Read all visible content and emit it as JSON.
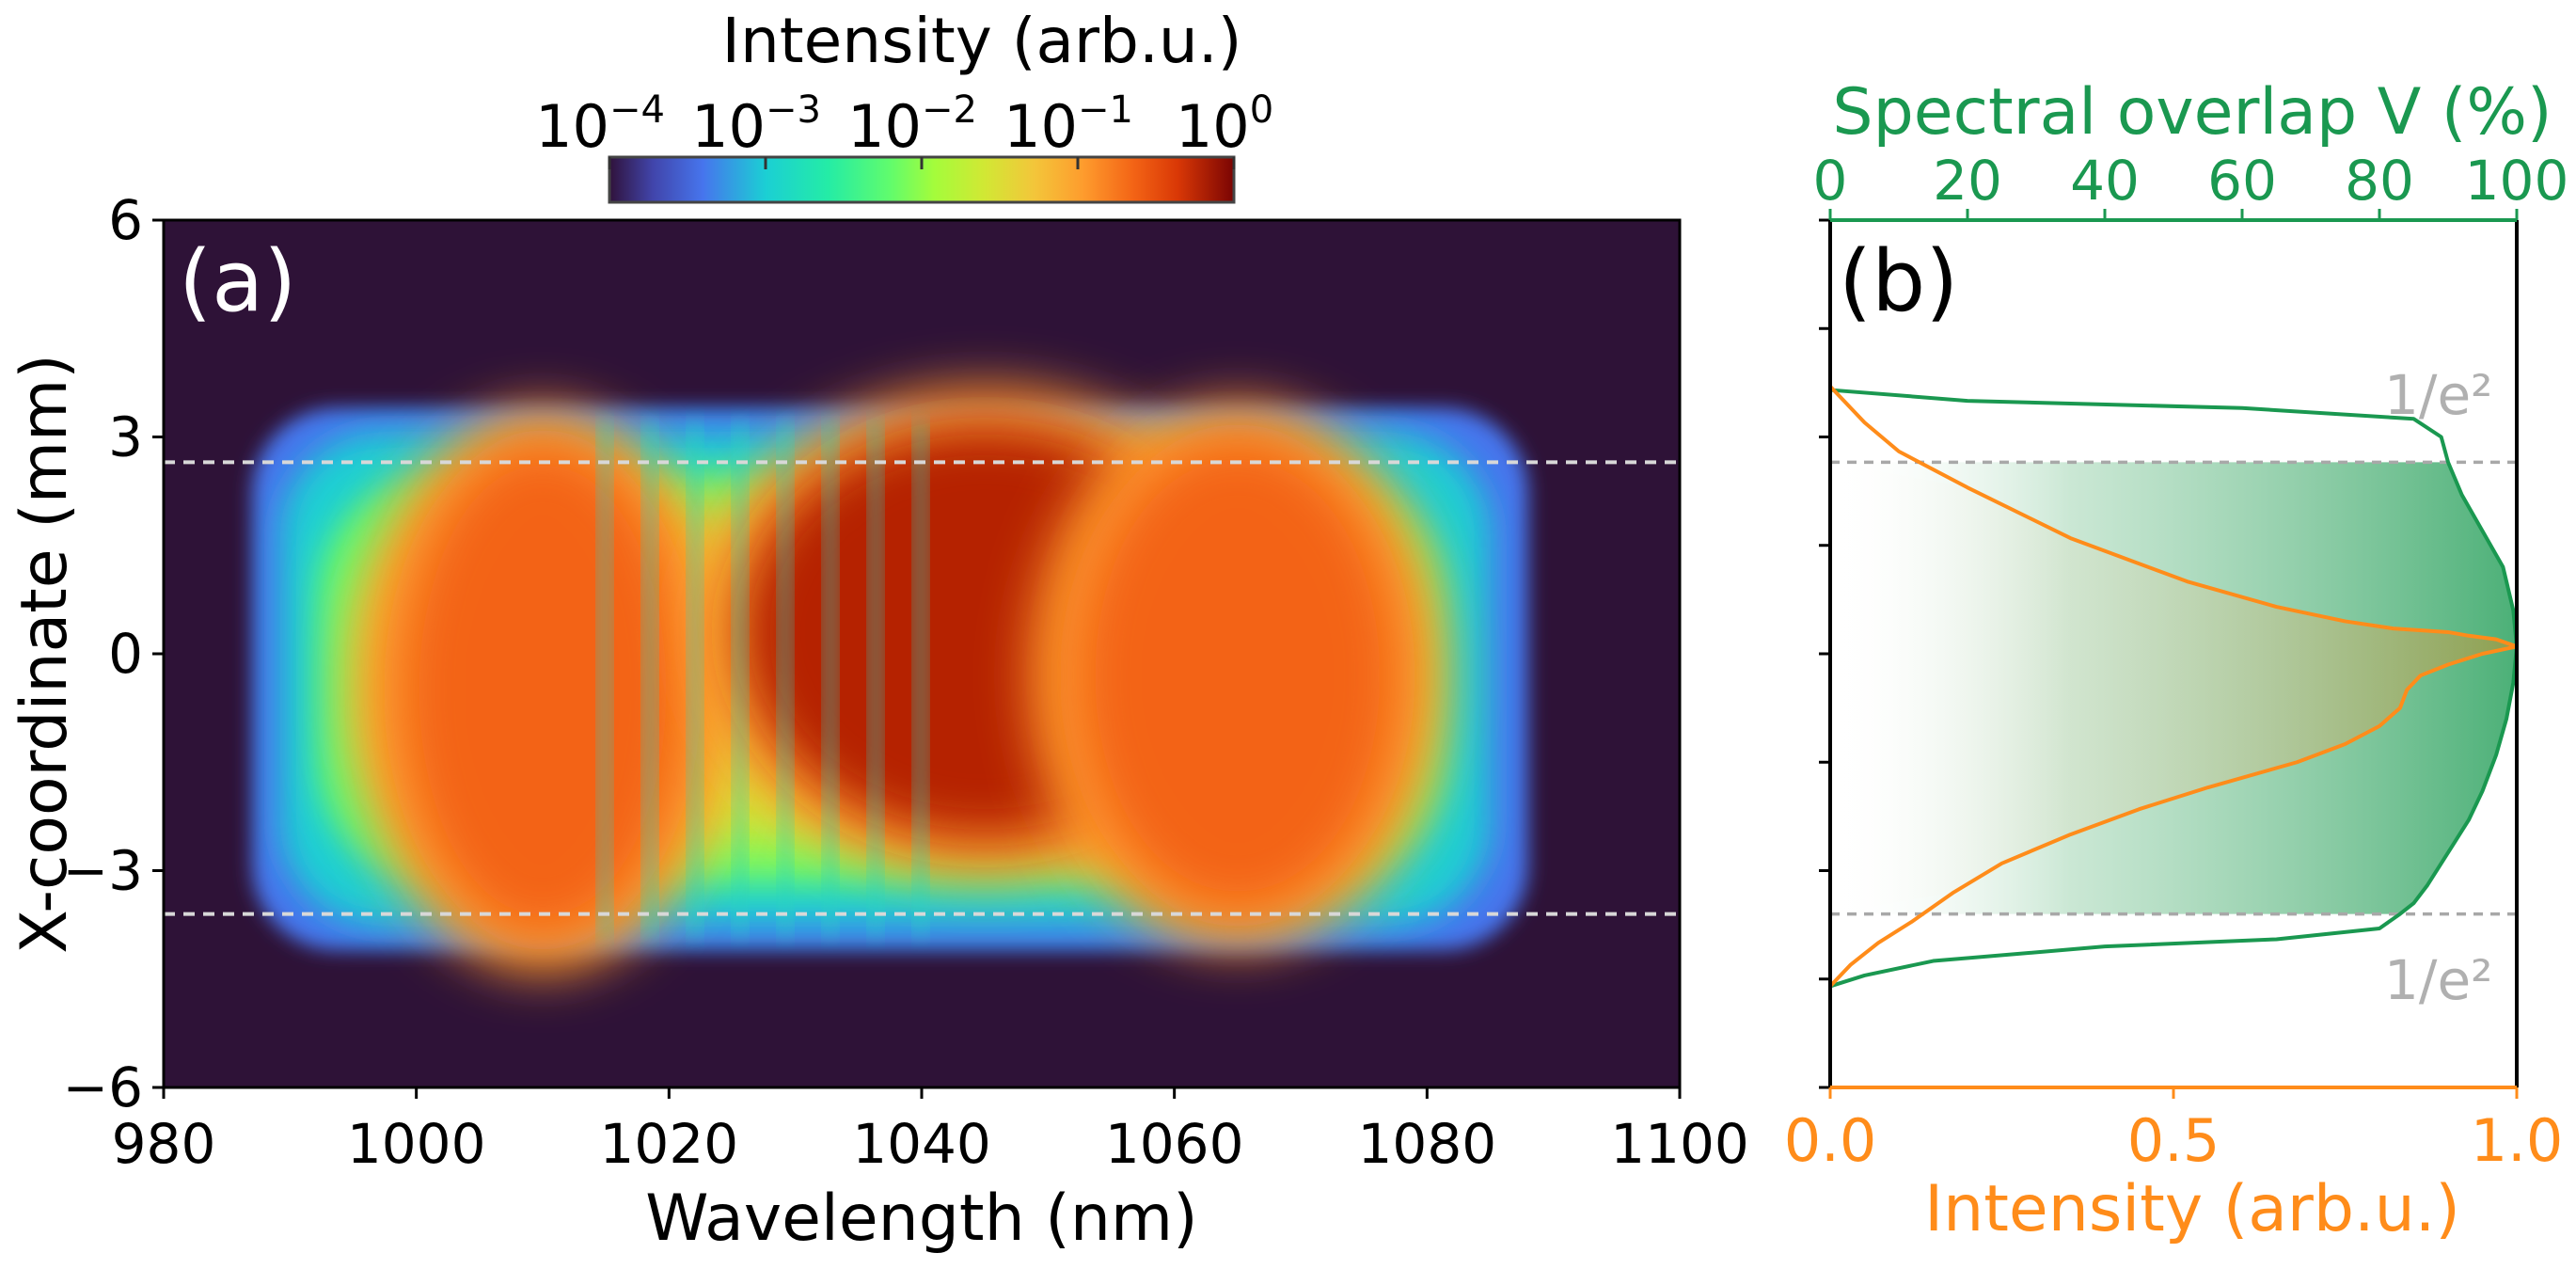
{
  "colors": {
    "background": "#ffffff",
    "map_bg": "#2e1237",
    "axis": "#000000",
    "green": "#1a9850",
    "orange": "#ff8c1a",
    "e2_gray": "#b0b0b0",
    "dash": "#d8d8d8"
  },
  "colorbar": {
    "title": "Intensity (arb.u.)",
    "ticks": [
      {
        "base": "10",
        "exp": "−4"
      },
      {
        "base": "10",
        "exp": "−3"
      },
      {
        "base": "10",
        "exp": "−2"
      },
      {
        "base": "10",
        "exp": "−1"
      },
      {
        "base": "10",
        "exp": "0"
      }
    ]
  },
  "chart_data": [
    {
      "id": "a",
      "type": "heatmap",
      "panel_label": "(a)",
      "title": "",
      "xlabel": "Wavelength (nm)",
      "ylabel": "X-coordinate (mm)",
      "xlim": [
        980,
        1100
      ],
      "ylim": [
        -6,
        6
      ],
      "xticks": [
        980,
        1000,
        1020,
        1040,
        1060,
        1080,
        1100
      ],
      "yticks": [
        -6,
        -3,
        0,
        3,
        6
      ],
      "ytick_labels": [
        "−6",
        "−3",
        "0",
        "3",
        "6"
      ],
      "colorscale": "log10 intensity",
      "clim_log10": [
        -4,
        0
      ],
      "beam_region": {
        "wavelength_nm": [
          987,
          1088
        ],
        "x_mm": [
          -4.1,
          3.4
        ]
      },
      "bright_lobes": [
        {
          "center_nm": 1010,
          "center_mm": -0.5,
          "log10_peak": -0.5
        },
        {
          "center_nm": 1045,
          "center_mm": 0.3,
          "log10_peak": 0
        },
        {
          "center_nm": 1065,
          "center_mm": -0.3,
          "log10_peak": -0.5
        }
      ],
      "fringes_nm": [
        1015,
        1040
      ],
      "dashed_lines_mm": [
        2.65,
        -3.6
      ]
    },
    {
      "id": "b",
      "type": "line",
      "panel_label": "(b)",
      "xlabel_bottom": "Intensity (arb.u.)",
      "xlabel_top": "Spectral overlap V (%)",
      "xlim_bottom": [
        0,
        1
      ],
      "xlim_top": [
        0,
        100
      ],
      "xticks_bottom": [
        "0.0",
        "0.5",
        "1.0"
      ],
      "xticks_top": [
        "0",
        "20",
        "40",
        "60",
        "80",
        "100"
      ],
      "ylim": [
        -6,
        6
      ],
      "annotations": [
        "1/e²",
        "1/e²"
      ],
      "dashed_lines_mm": [
        2.65,
        -3.6
      ],
      "series": [
        {
          "name": "Intensity",
          "axis": "bottom",
          "points": [
            [
              0.0,
              3.7
            ],
            [
              0.05,
              3.2
            ],
            [
              0.1,
              2.8
            ],
            [
              0.2,
              2.3
            ],
            [
              0.35,
              1.6
            ],
            [
              0.52,
              1.0
            ],
            [
              0.65,
              0.65
            ],
            [
              0.75,
              0.45
            ],
            [
              0.82,
              0.35
            ],
            [
              0.9,
              0.3
            ],
            [
              0.93,
              0.25
            ],
            [
              0.97,
              0.2
            ],
            [
              1.0,
              0.1
            ],
            [
              0.95,
              0.0
            ],
            [
              0.9,
              -0.15
            ],
            [
              0.86,
              -0.3
            ],
            [
              0.84,
              -0.5
            ],
            [
              0.83,
              -0.75
            ],
            [
              0.8,
              -1.0
            ],
            [
              0.75,
              -1.25
            ],
            [
              0.68,
              -1.5
            ],
            [
              0.55,
              -1.85
            ],
            [
              0.45,
              -2.15
            ],
            [
              0.35,
              -2.5
            ],
            [
              0.25,
              -2.9
            ],
            [
              0.18,
              -3.3
            ],
            [
              0.12,
              -3.7
            ],
            [
              0.07,
              -4.0
            ],
            [
              0.03,
              -4.3
            ],
            [
              0.0,
              -4.6
            ]
          ]
        },
        {
          "name": "Spectral overlap V",
          "axis": "top",
          "points": [
            [
              0,
              3.65
            ],
            [
              20,
              3.5
            ],
            [
              60,
              3.4
            ],
            [
              85,
              3.25
            ],
            [
              89,
              3.0
            ],
            [
              90,
              2.65
            ],
            [
              92,
              2.2
            ],
            [
              95,
              1.7
            ],
            [
              98,
              1.2
            ],
            [
              99.5,
              0.6
            ],
            [
              100,
              0.1
            ],
            [
              99.5,
              -0.4
            ],
            [
              98.5,
              -0.9
            ],
            [
              97,
              -1.4
            ],
            [
              95,
              -1.9
            ],
            [
              93,
              -2.3
            ],
            [
              91,
              -2.6
            ],
            [
              89,
              -2.9
            ],
            [
              87,
              -3.2
            ],
            [
              85,
              -3.45
            ],
            [
              83,
              -3.6
            ],
            [
              80,
              -3.8
            ],
            [
              65,
              -3.95
            ],
            [
              40,
              -4.05
            ],
            [
              15,
              -4.25
            ],
            [
              5,
              -4.45
            ],
            [
              0,
              -4.6
            ]
          ]
        }
      ]
    }
  ]
}
